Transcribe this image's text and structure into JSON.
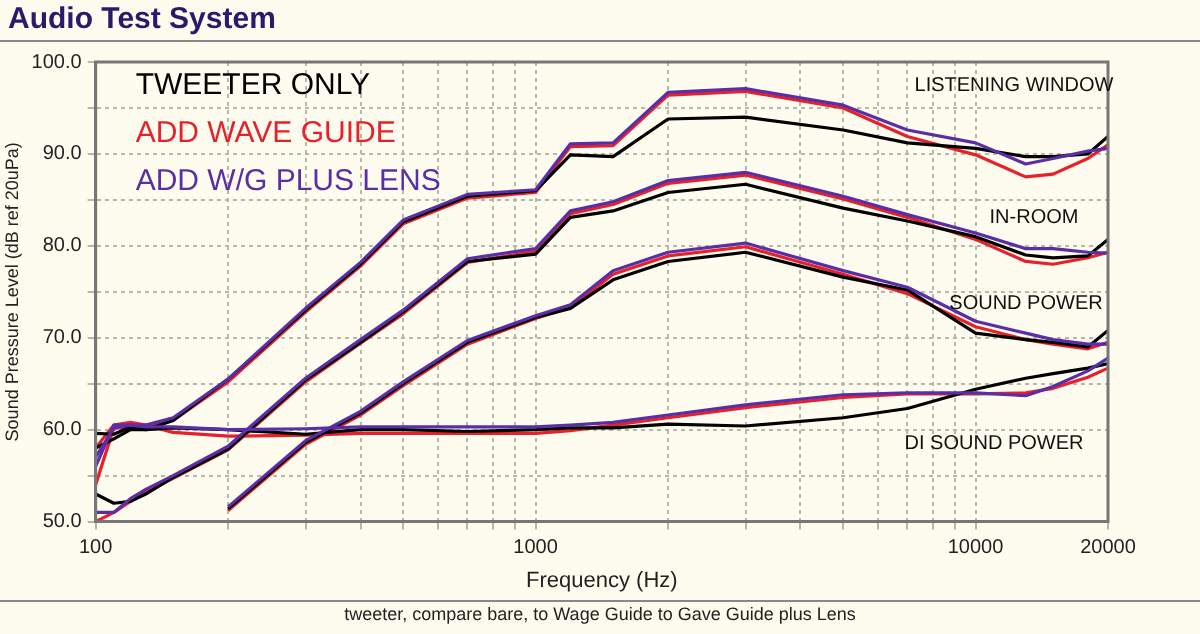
{
  "chart_data": {
    "type": "line",
    "title": "Audio Test System",
    "xlabel": "Frequency (Hz)",
    "ylabel": "Sound Pressure Level (dB ref 20uPa)",
    "annotations": [
      "LISTENING WINDOW",
      "IN-ROOM",
      "SOUND POWER",
      "DI SOUND POWER",
      "tweeter, compare bare, to Wage Guide to Gave Guide plus Lens"
    ],
    "x": [
      100,
      110,
      120,
      130,
      150,
      200,
      300,
      400,
      500,
      700,
      1000,
      1200,
      1500,
      2000,
      3000,
      5000,
      7000,
      10000,
      13000,
      15000,
      18000,
      20000
    ],
    "series": [
      {
        "name": "TWEETER ONLY",
        "color": "#000000",
        "values": [
          58,
          59,
          60,
          60,
          61,
          65.5,
          73,
          78,
          82.6,
          85.4,
          86,
          89.9,
          89.7,
          93.8,
          94.0,
          92.6,
          91.2,
          90.6,
          89.7,
          89.7,
          90.0,
          91.9
        ]
      },
      {
        "name": "ADD WAVE GUIDE",
        "color": "#e8202a",
        "values": [
          54,
          60.2,
          60.2,
          60.2,
          61.0,
          65.2,
          72.8,
          77.8,
          82.4,
          85.2,
          85.8,
          90.8,
          90.9,
          96.4,
          96.8,
          95.0,
          91.9,
          89.9,
          87.5,
          87.8,
          89.5,
          91.0
        ]
      },
      {
        "name": "ADD W/G PLUS LENS",
        "color": "#5a2ea6",
        "values": [
          56,
          60.5,
          60.5,
          60.5,
          61.3,
          65.5,
          73.2,
          78.2,
          82.8,
          85.6,
          86.1,
          91.1,
          91.2,
          96.7,
          97.1,
          95.3,
          92.6,
          91.2,
          88.9,
          89.5,
          90.3,
          90.6
        ]
      },
      {
        "color": "#000000",
        "values": [
          53,
          52,
          52.2,
          53,
          54.8,
          57.9,
          65.4,
          69.5,
          72.8,
          78.3,
          79.1,
          83.1,
          83.8,
          85.8,
          86.7,
          84.1,
          82.7,
          81.0,
          79.0,
          78.7,
          78.9,
          80.7
        ]
      },
      {
        "color": "#e8202a",
        "values": [
          50,
          51,
          52.2,
          53.2,
          54.7,
          57.8,
          65.2,
          69.4,
          72.6,
          78.2,
          79.4,
          83.5,
          84.5,
          86.8,
          87.7,
          85.1,
          83.1,
          80.7,
          78.3,
          78.0,
          78.7,
          79.3
        ]
      },
      {
        "color": "#5a2ea6",
        "values": [
          51,
          51,
          52.5,
          53.5,
          55,
          58.2,
          65.6,
          69.8,
          73,
          78.6,
          79.7,
          83.8,
          84.8,
          87.1,
          88.0,
          85.4,
          83.4,
          81.4,
          79.7,
          79.7,
          79.3,
          79.2
        ]
      },
      {
        "color": "#000000",
        "values": [
          null,
          null,
          null,
          null,
          null,
          51.4,
          58.6,
          61.8,
          65.0,
          69.5,
          72.2,
          73.2,
          76.3,
          78.3,
          79.3,
          76.6,
          75.2,
          70.5,
          69.8,
          69.5,
          69.0,
          70.8
        ]
      },
      {
        "color": "#e8202a",
        "values": [
          null,
          null,
          null,
          null,
          null,
          51.2,
          58.4,
          61.6,
          64.8,
          69.3,
          72.1,
          73.3,
          76.9,
          78.9,
          79.9,
          76.9,
          74.8,
          71.2,
          69.8,
          69.3,
          68.8,
          69.5
        ]
      },
      {
        "color": "#5a2ea6",
        "values": [
          null,
          null,
          null,
          null,
          null,
          51.6,
          58.8,
          62.0,
          65.2,
          69.7,
          72.4,
          73.6,
          77.3,
          79.3,
          80.3,
          77.3,
          75.5,
          71.8,
          70.5,
          69.8,
          69.3,
          69.3
        ]
      },
      {
        "color": "#000000",
        "values": [
          59.6,
          59.5,
          60.3,
          60.0,
          60.2,
          60.0,
          59.5,
          60.0,
          60.0,
          59.8,
          60.0,
          60.2,
          60.2,
          60.6,
          60.4,
          61.3,
          62.3,
          64.4,
          65.6,
          66.1,
          66.7,
          67.2
        ]
      },
      {
        "color": "#e8202a",
        "values": [
          58,
          60.5,
          60.8,
          60.5,
          59.7,
          59.3,
          59.4,
          59.6,
          59.6,
          59.6,
          59.6,
          59.9,
          60.5,
          61.3,
          62.4,
          63.5,
          63.9,
          63.9,
          64.0,
          64.5,
          65.7,
          66.7
        ]
      },
      {
        "color": "#5a2ea6",
        "values": [
          57,
          60.2,
          60.5,
          60.3,
          60.3,
          60.0,
          60.1,
          60.3,
          60.3,
          60.3,
          60.3,
          60.5,
          60.8,
          61.6,
          62.7,
          63.8,
          64.0,
          64.0,
          63.7,
          64.7,
          66.4,
          67.8
        ]
      }
    ],
    "xlim": [
      100,
      20000
    ],
    "xticks": [
      100,
      {
        "value": 200,
        "label": null
      },
      {
        "value": 300,
        "label": null
      },
      {
        "value": 400,
        "label": null
      },
      {
        "value": 500,
        "label": null
      },
      {
        "value": 600,
        "label": null
      },
      {
        "value": 700,
        "label": null
      },
      {
        "value": 800,
        "label": null
      },
      {
        "value": 900,
        "label": null
      },
      1000,
      {
        "value": 2000,
        "label": null
      },
      {
        "value": 3000,
        "label": null
      },
      {
        "value": 4000,
        "label": null
      },
      {
        "value": 5000,
        "label": null
      },
      {
        "value": 6000,
        "label": null
      },
      {
        "value": 7000,
        "label": null
      },
      {
        "value": 8000,
        "label": null
      },
      {
        "value": 9000,
        "label": null
      },
      10000,
      20000
    ],
    "ylim": [
      50,
      100
    ],
    "yticks": [
      {
        "value": 50,
        "label": "50.0"
      },
      {
        "value": 55,
        "label": null
      },
      {
        "value": 60,
        "label": "60.0"
      },
      {
        "value": 65,
        "label": null
      },
      {
        "value": 70,
        "label": "70.0"
      },
      {
        "value": 75,
        "label": null
      },
      {
        "value": 80,
        "label": "80.0"
      },
      {
        "value": 85,
        "label": null
      },
      {
        "value": 90,
        "label": "90.0"
      },
      {
        "value": 95,
        "label": null
      },
      {
        "value": 100,
        "label": "100.0"
      }
    ],
    "log": "x",
    "grid": true,
    "legend": "top left",
    "marker": "none",
    "line_style": "solid"
  }
}
